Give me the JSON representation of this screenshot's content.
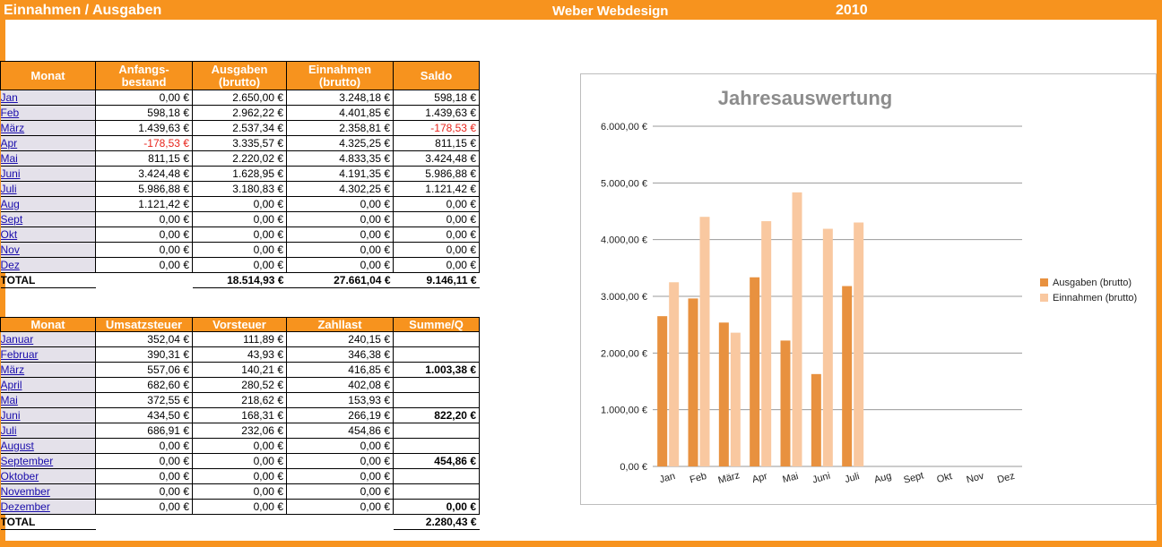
{
  "header": {
    "title": "Einnahmen / Ausgaben",
    "company": "Weber Webdesign",
    "year": "2010"
  },
  "table1": {
    "headers": [
      "Monat",
      "Anfangs-\nbestand",
      "Ausgaben\n(brutto)",
      "Einnahmen\n(brutto)",
      "Saldo"
    ],
    "rows": [
      [
        "Jan",
        "0,00 €",
        "2.650,00 €",
        "3.248,18 €",
        "598,18 €"
      ],
      [
        "Feb",
        "598,18 €",
        "2.962,22 €",
        "4.401,85 €",
        "1.439,63 €"
      ],
      [
        "März",
        "1.439,63 €",
        "2.537,34 €",
        "2.358,81 €",
        "-178,53 €"
      ],
      [
        "Apr",
        "-178,53 €",
        "3.335,57 €",
        "4.325,25 €",
        "811,15 €"
      ],
      [
        "Mai",
        "811,15 €",
        "2.220,02 €",
        "4.833,35 €",
        "3.424,48 €"
      ],
      [
        "Juni",
        "3.424,48 €",
        "1.628,95 €",
        "4.191,35 €",
        "5.986,88 €"
      ],
      [
        "Juli",
        "5.986,88 €",
        "3.180,83 €",
        "4.302,25 €",
        "1.121,42 €"
      ],
      [
        "Aug",
        "1.121,42 €",
        "0,00 €",
        "0,00 €",
        "0,00 €"
      ],
      [
        "Sept",
        "0,00 €",
        "0,00 €",
        "0,00 €",
        "0,00 €"
      ],
      [
        "Okt",
        "0,00 €",
        "0,00 €",
        "0,00 €",
        "0,00 €"
      ],
      [
        "Nov",
        "0,00 €",
        "0,00 €",
        "0,00 €",
        "0,00 €"
      ],
      [
        "Dez",
        "0,00 €",
        "0,00 €",
        "0,00 €",
        "0,00 €"
      ]
    ],
    "total": [
      "TOTAL",
      "",
      "18.514,93 €",
      "27.661,04 €",
      "9.146,11 €"
    ],
    "negative_color": "#e8241b"
  },
  "table2": {
    "headers": [
      "Monat",
      "Umsatzsteuer",
      "Vorsteuer",
      "Zahllast",
      "Summe/Q"
    ],
    "rows": [
      [
        "Januar",
        "352,04 €",
        "111,89 €",
        "240,15 €",
        ""
      ],
      [
        "Februar",
        "390,31 €",
        "43,93 €",
        "346,38 €",
        ""
      ],
      [
        "März",
        "557,06 €",
        "140,21 €",
        "416,85 €",
        "1.003,38 €"
      ],
      [
        "April",
        "682,60 €",
        "280,52 €",
        "402,08 €",
        ""
      ],
      [
        "Mai",
        "372,55 €",
        "218,62 €",
        "153,93 €",
        ""
      ],
      [
        "Juni",
        "434,50 €",
        "168,31 €",
        "266,19 €",
        "822,20 €"
      ],
      [
        "Juli",
        "686,91 €",
        "232,06 €",
        "454,86 €",
        ""
      ],
      [
        "August",
        "0,00 €",
        "0,00 €",
        "0,00 €",
        ""
      ],
      [
        "September",
        "0,00 €",
        "0,00 €",
        "0,00 €",
        "454,86 €"
      ],
      [
        "Oktober",
        "0,00 €",
        "0,00 €",
        "0,00 €",
        ""
      ],
      [
        "November",
        "0,00 €",
        "0,00 €",
        "0,00 €",
        ""
      ],
      [
        "Dezember",
        "0,00 €",
        "0,00 €",
        "0,00 €",
        "0,00 €"
      ]
    ],
    "total": [
      "TOTAL",
      "",
      "",
      "",
      "2.280,43 €"
    ]
  },
  "chart_data": {
    "type": "bar",
    "title": "Jahresauswertung",
    "categories": [
      "Jan",
      "Feb",
      "März",
      "Apr",
      "Mai",
      "Juni",
      "Juli",
      "Aug",
      "Sept",
      "Okt",
      "Nov",
      "Dez"
    ],
    "series": [
      {
        "name": "Ausgaben  (brutto)",
        "color": "#e8913f",
        "values": [
          2650.0,
          2962.22,
          2537.34,
          3335.57,
          2220.02,
          1628.95,
          3180.83,
          0,
          0,
          0,
          0,
          0
        ]
      },
      {
        "name": "Einnahmen  (brutto)",
        "color": "#f9c8a0",
        "values": [
          3248.18,
          4401.85,
          2358.81,
          4325.25,
          4833.35,
          4191.35,
          4302.25,
          0,
          0,
          0,
          0,
          0
        ]
      }
    ],
    "yticks": [
      "0,00 €",
      "1.000,00 €",
      "2.000,00 €",
      "3.000,00 €",
      "4.000,00 €",
      "5.000,00 €",
      "6.000,00 €"
    ],
    "ylim": [
      0,
      6000
    ],
    "grid": true,
    "legend": "right"
  }
}
